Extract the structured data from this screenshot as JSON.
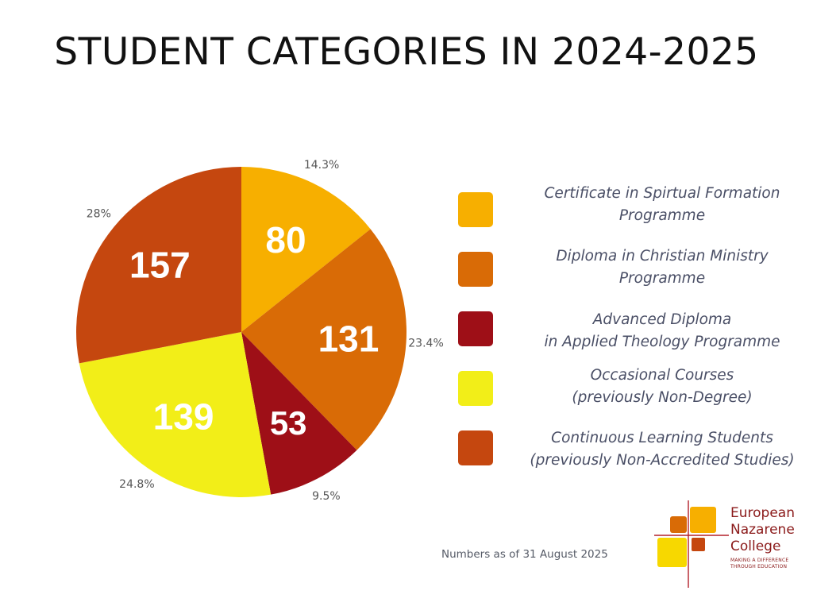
{
  "chart_data": {
    "type": "pie",
    "title": "STUDENT CATEGORIES IN 2024-2025",
    "categories": [
      "Certificate in Spirtual Formation Programme",
      "Diploma in Christian Ministry Programme",
      "Advanced Diploma in Applied Theology Programme",
      "Occasional Courses (previously Non-Degree)",
      "Continuous Learning Students (previously Non-Accredited Studies)"
    ],
    "values": [
      80,
      131,
      53,
      139,
      157
    ],
    "value_labels": [
      "80",
      "131",
      "53",
      "139",
      "157"
    ],
    "percent_labels": [
      "14.3%",
      "23.4%",
      "9.5%",
      "24.8%",
      "28%"
    ],
    "colors": [
      "#F7AF00",
      "#D96B06",
      "#9E0F17",
      "#F2EE18",
      "#C5470F"
    ],
    "legend_position": "right",
    "start_angle": "12 o'clock",
    "direction": "clockwise"
  },
  "legend": {
    "items": [
      {
        "line1": "Certificate in Spirtual Formation",
        "line2": "Programme"
      },
      {
        "line1": "Diploma in Christian Ministry",
        "line2": "Programme"
      },
      {
        "line1": "Advanced Diploma",
        "line2": "in Applied Theology Programme"
      },
      {
        "line1": "Occasional Courses",
        "line2": "(previously Non-Degree)"
      },
      {
        "line1": "Continuous Learning Students",
        "line2": "(previously Non-Accredited Studies)"
      }
    ]
  },
  "footnote": "Numbers as of 31 August 2025",
  "logo": {
    "name_line1": "European",
    "name_line2": "Nazarene",
    "name_line3": "College",
    "tagline_line1": "MAKING A DIFFERENCE",
    "tagline_line2": "THROUGH EDUCATION"
  }
}
